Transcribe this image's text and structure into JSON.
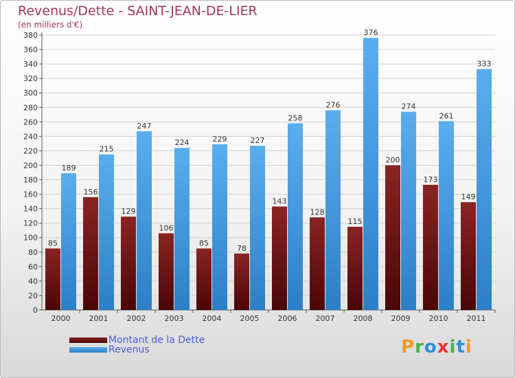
{
  "chart_data": {
    "type": "bar",
    "title": "Revenus/Dette - SAINT-JEAN-DE-LIER",
    "subtitle": "(en milliers d'€)",
    "categories": [
      "2000",
      "2001",
      "2002",
      "2003",
      "2004",
      "2005",
      "2006",
      "2007",
      "2008",
      "2009",
      "2010",
      "2011"
    ],
    "series": [
      {
        "name": "Montant de la Dette",
        "color": "#7a1a1a",
        "values": [
          85,
          156,
          129,
          106,
          85,
          78,
          143,
          128,
          115,
          200,
          173,
          149
        ]
      },
      {
        "name": "Revenus",
        "color": "#4a9fe6",
        "values": [
          189,
          215,
          247,
          224,
          229,
          227,
          258,
          276,
          376,
          274,
          261,
          333
        ]
      }
    ],
    "ylim": [
      0,
      380
    ],
    "ytick_step": 20,
    "grid": true,
    "legend_position": "bottom-left"
  },
  "logo": {
    "text": "Proxiti",
    "colors": [
      "#f29a1e",
      "#4bb04a",
      "#2d8fd8",
      "#e8312f",
      "#4bb04a",
      "#2d8fd8",
      "#f29a1e"
    ]
  }
}
